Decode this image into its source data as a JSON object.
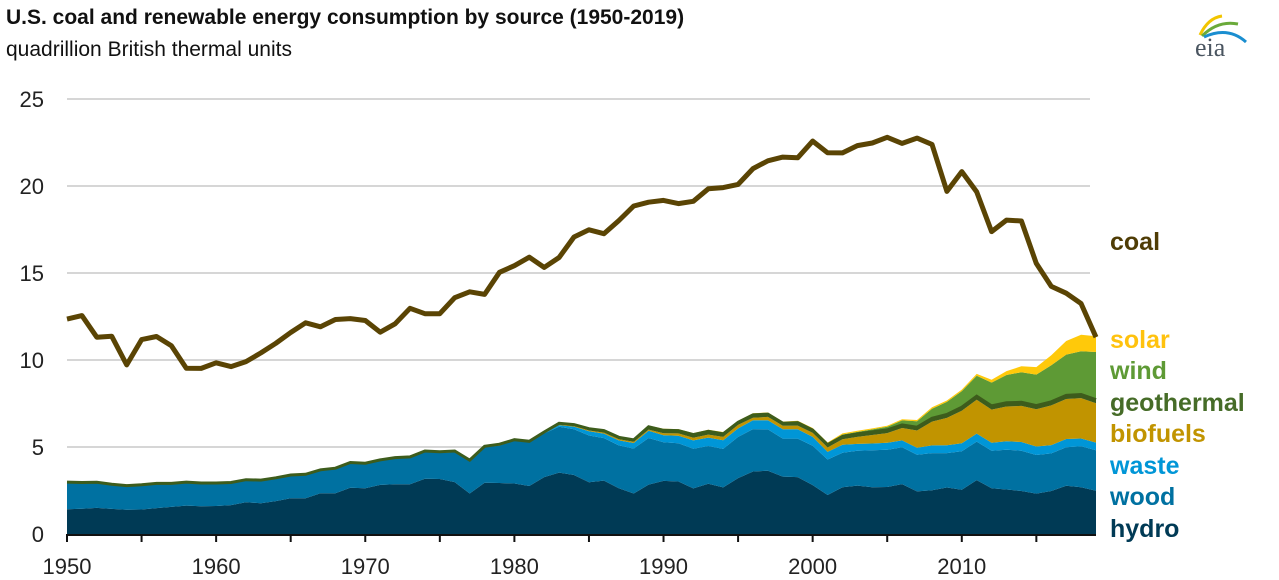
{
  "chart_data": {
    "type": "area",
    "title": "U.S. coal and renewable energy consumption by source (1950-2019)",
    "subtitle": "quadrillion British thermal units",
    "xlabel": "",
    "ylabel": "",
    "xlim": [
      1950,
      2019
    ],
    "ylim": [
      0,
      25
    ],
    "yticks": [
      "0",
      "5",
      "10",
      "15",
      "20",
      "25"
    ],
    "xticks": [
      "1950",
      "1960",
      "1970",
      "1980",
      "1990",
      "2000",
      "2010"
    ],
    "grid": "horizontal",
    "legend": "right, direct labels",
    "x_start_year": 1950,
    "stacked_series": [
      {
        "name": "hydro",
        "color": "#003a55",
        "values": [
          1.42,
          1.45,
          1.5,
          1.44,
          1.39,
          1.41,
          1.49,
          1.56,
          1.63,
          1.59,
          1.61,
          1.66,
          1.82,
          1.77,
          1.89,
          2.06,
          2.06,
          2.34,
          2.34,
          2.66,
          2.63,
          2.82,
          2.86,
          2.86,
          3.18,
          3.16,
          2.98,
          2.33,
          2.94,
          2.93,
          2.9,
          2.76,
          3.27,
          3.53,
          3.39,
          2.97,
          3.07,
          2.63,
          2.33,
          2.84,
          3.05,
          3.02,
          2.62,
          2.89,
          2.68,
          3.21,
          3.59,
          3.64,
          3.3,
          3.27,
          2.81,
          2.24,
          2.69,
          2.78,
          2.69,
          2.7,
          2.87,
          2.45,
          2.51,
          2.67,
          2.54,
          3.1,
          2.63,
          2.56,
          2.47,
          2.32,
          2.47,
          2.77,
          2.69,
          2.49
        ]
      },
      {
        "name": "wood",
        "color": "#0071a1",
        "values": [
          1.56,
          1.51,
          1.47,
          1.42,
          1.39,
          1.42,
          1.42,
          1.35,
          1.35,
          1.34,
          1.32,
          1.3,
          1.3,
          1.32,
          1.34,
          1.33,
          1.37,
          1.34,
          1.43,
          1.44,
          1.43,
          1.43,
          1.5,
          1.53,
          1.54,
          1.5,
          1.71,
          1.84,
          2.04,
          2.15,
          2.47,
          2.5,
          2.51,
          2.63,
          2.63,
          2.69,
          2.44,
          2.46,
          2.58,
          2.68,
          2.22,
          2.19,
          2.28,
          2.17,
          2.21,
          2.37,
          2.44,
          2.37,
          2.18,
          2.21,
          2.26,
          2.04,
          1.98,
          2.0,
          2.12,
          2.14,
          2.11,
          2.1,
          2.14,
          1.98,
          2.22,
          2.21,
          2.15,
          2.28,
          2.32,
          2.22,
          2.16,
          2.22,
          2.35,
          2.32
        ]
      },
      {
        "name": "waste",
        "color": "#0096d7",
        "values": [
          0,
          0,
          0,
          0,
          0,
          0,
          0,
          0,
          0,
          0,
          0,
          0,
          0,
          0,
          0,
          0,
          0,
          0,
          0,
          0,
          0,
          0,
          0,
          0,
          0,
          0,
          0,
          0,
          0,
          0,
          0.0,
          0.0,
          0.01,
          0.1,
          0.15,
          0.24,
          0.26,
          0.29,
          0.32,
          0.41,
          0.41,
          0.44,
          0.48,
          0.48,
          0.5,
          0.49,
          0.51,
          0.53,
          0.54,
          0.54,
          0.51,
          0.44,
          0.46,
          0.4,
          0.39,
          0.4,
          0.4,
          0.41,
          0.44,
          0.45,
          0.45,
          0.46,
          0.47,
          0.49,
          0.5,
          0.49,
          0.48,
          0.47,
          0.45,
          0.44
        ]
      },
      {
        "name": "biofuels",
        "color": "#c19400",
        "values": [
          0,
          0,
          0,
          0,
          0,
          0,
          0,
          0,
          0,
          0,
          0,
          0,
          0,
          0,
          0,
          0,
          0,
          0,
          0,
          0,
          0,
          0,
          0,
          0,
          0,
          0,
          0,
          0,
          0,
          0,
          0,
          0.01,
          0.02,
          0.04,
          0.04,
          0.05,
          0.06,
          0.07,
          0.07,
          0.07,
          0.11,
          0.13,
          0.15,
          0.17,
          0.19,
          0.2,
          0.14,
          0.19,
          0.2,
          0.21,
          0.23,
          0.25,
          0.31,
          0.4,
          0.49,
          0.56,
          0.71,
          0.99,
          1.37,
          1.57,
          1.87,
          1.94,
          1.9,
          2.0,
          2.07,
          2.14,
          2.28,
          2.3,
          2.32,
          2.26
        ]
      },
      {
        "name": "geothermal",
        "color": "#3d5c1c",
        "values": [
          0,
          0,
          0,
          0,
          0,
          0,
          0,
          0,
          0,
          0,
          0.0,
          0.0,
          0.0,
          0.01,
          0.0,
          0.0,
          0.0,
          0.01,
          0.01,
          0.01,
          0.01,
          0.01,
          0.03,
          0.04,
          0.05,
          0.07,
          0.08,
          0.08,
          0.06,
          0.08,
          0.05,
          0.06,
          0.05,
          0.06,
          0.08,
          0.1,
          0.11,
          0.11,
          0.11,
          0.16,
          0.17,
          0.16,
          0.18,
          0.19,
          0.18,
          0.15,
          0.17,
          0.16,
          0.15,
          0.17,
          0.16,
          0.16,
          0.17,
          0.17,
          0.18,
          0.18,
          0.18,
          0.19,
          0.19,
          0.2,
          0.21,
          0.21,
          0.21,
          0.21,
          0.21,
          0.21,
          0.21,
          0.21,
          0.21,
          0.21
        ]
      },
      {
        "name": "wind",
        "color": "#5e9a35",
        "values": [
          0,
          0,
          0,
          0,
          0,
          0,
          0,
          0,
          0,
          0,
          0,
          0,
          0,
          0,
          0,
          0,
          0,
          0,
          0,
          0,
          0,
          0,
          0,
          0,
          0,
          0,
          0,
          0,
          0,
          0,
          0,
          0,
          0,
          0,
          0,
          0,
          0,
          0,
          0,
          0.02,
          0.03,
          0.03,
          0.03,
          0.03,
          0.04,
          0.03,
          0.03,
          0.03,
          0.03,
          0.05,
          0.06,
          0.07,
          0.11,
          0.12,
          0.14,
          0.18,
          0.26,
          0.34,
          0.55,
          0.72,
          0.92,
          1.17,
          1.34,
          1.6,
          1.73,
          1.78,
          2.1,
          2.34,
          2.48,
          2.74
        ]
      },
      {
        "name": "solar",
        "color": "#ffc90a",
        "values": [
          0,
          0,
          0,
          0,
          0,
          0,
          0,
          0,
          0,
          0,
          0,
          0,
          0,
          0,
          0,
          0,
          0,
          0,
          0,
          0,
          0,
          0,
          0,
          0,
          0,
          0,
          0,
          0,
          0,
          0,
          0,
          0,
          0,
          0,
          0,
          0,
          0,
          0,
          0,
          0.05,
          0.06,
          0.06,
          0.06,
          0.06,
          0.06,
          0.06,
          0.06,
          0.06,
          0.06,
          0.06,
          0.06,
          0.06,
          0.06,
          0.06,
          0.06,
          0.06,
          0.07,
          0.07,
          0.08,
          0.08,
          0.09,
          0.11,
          0.16,
          0.22,
          0.34,
          0.43,
          0.57,
          0.78,
          0.95,
          0.9
        ]
      }
    ],
    "line_series": [
      {
        "name": "coal",
        "color": "#5a4404",
        "values": [
          12.35,
          12.55,
          11.31,
          11.37,
          9.72,
          11.17,
          11.35,
          10.82,
          9.53,
          9.52,
          9.84,
          9.62,
          9.91,
          10.41,
          10.96,
          11.58,
          12.14,
          11.91,
          12.33,
          12.38,
          12.27,
          11.6,
          12.08,
          12.97,
          12.66,
          12.66,
          13.58,
          13.92,
          13.77,
          15.04,
          15.42,
          15.91,
          15.32,
          15.89,
          17.07,
          17.48,
          17.26,
          18.01,
          18.85,
          19.07,
          19.17,
          18.99,
          19.12,
          19.84,
          19.91,
          20.09,
          21.0,
          21.45,
          21.66,
          21.62,
          22.58,
          21.91,
          21.9,
          22.32,
          22.47,
          22.8,
          22.45,
          22.75,
          22.39,
          19.69,
          20.83,
          19.66,
          17.38,
          18.04,
          17.99,
          15.55,
          14.23,
          13.84,
          13.24,
          11.31
        ]
      }
    ]
  },
  "logo": {
    "text": "eia"
  }
}
